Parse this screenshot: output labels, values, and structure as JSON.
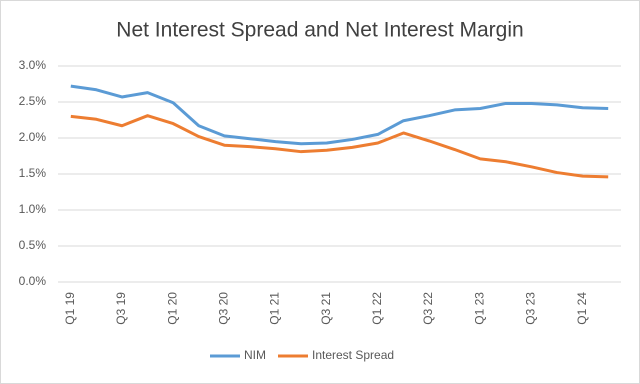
{
  "chart_data": {
    "type": "line",
    "title": "Net Interest Spread and Net Interest Margin",
    "categories": [
      "Q1 19",
      null,
      "Q3 19",
      null,
      "Q1 20",
      null,
      "Q3 20",
      null,
      "Q1 21",
      null,
      "Q3 21",
      null,
      "Q1 22",
      null,
      "Q3 22",
      null,
      "Q1 23",
      null,
      "Q3 23",
      null,
      "Q1 24",
      null
    ],
    "series": [
      {
        "name": "NIM",
        "color": "#5b9bd5",
        "values": [
          2.72,
          2.67,
          2.57,
          2.63,
          2.49,
          2.17,
          2.03,
          1.99,
          1.95,
          1.92,
          1.93,
          1.98,
          2.05,
          2.24,
          2.31,
          2.39,
          2.41,
          2.48,
          2.48,
          2.46,
          2.42,
          2.41
        ]
      },
      {
        "name": "Interest Spread",
        "color": "#ed7d31",
        "values": [
          2.3,
          2.26,
          2.17,
          2.31,
          2.2,
          2.02,
          1.9,
          1.88,
          1.85,
          1.81,
          1.83,
          1.87,
          1.93,
          2.07,
          1.96,
          1.84,
          1.71,
          1.67,
          1.6,
          1.52,
          1.47,
          1.46
        ]
      }
    ],
    "ylim": [
      0,
      3
    ],
    "yticks": [
      {
        "value": 0,
        "label": "0.0%"
      },
      {
        "value": 0.5,
        "label": "0.5%"
      },
      {
        "value": 1,
        "label": "1.0%"
      },
      {
        "value": 1.5,
        "label": "1.5%"
      },
      {
        "value": 2,
        "label": "2.0%"
      },
      {
        "value": 2.5,
        "label": "2.5%"
      },
      {
        "value": 3,
        "label": "3.0%"
      }
    ],
    "grid": true,
    "legend": "bottom"
  }
}
